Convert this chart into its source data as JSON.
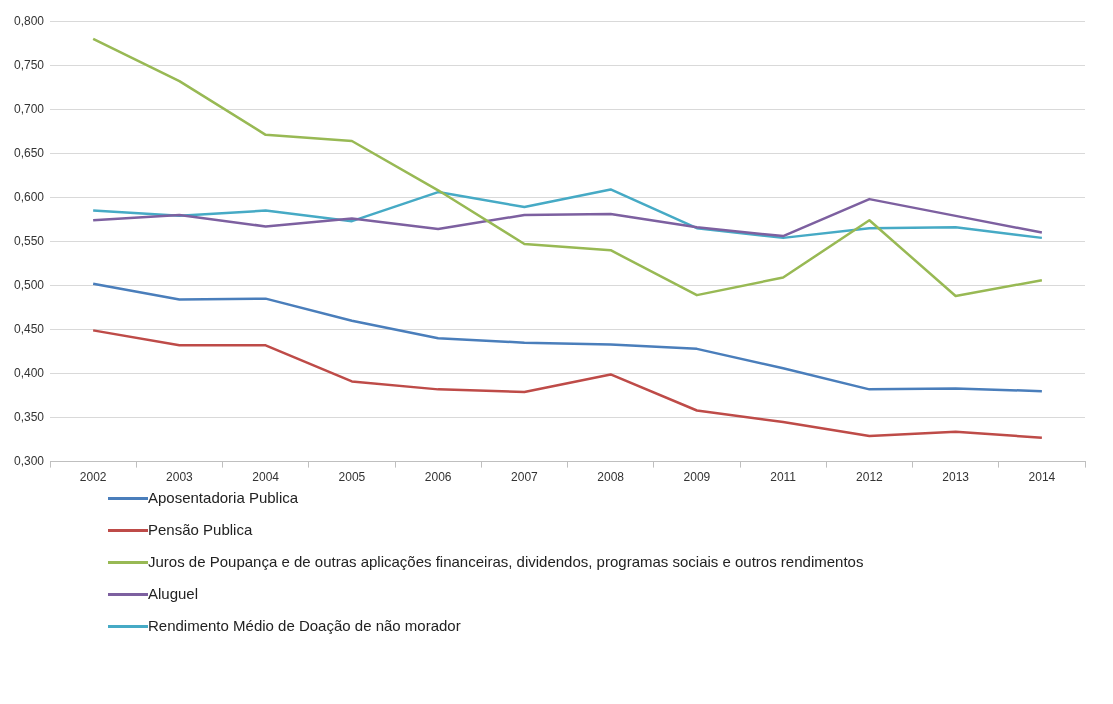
{
  "chart_data": {
    "type": "line",
    "categories": [
      "2002",
      "2003",
      "2004",
      "2005",
      "2006",
      "2007",
      "2008",
      "2009",
      "2011",
      "2012",
      "2013",
      "2014"
    ],
    "series": [
      {
        "name": "Aposentadoria Publica",
        "color": "#4a7ebb",
        "values": [
          0.502,
          0.484,
          0.485,
          0.46,
          0.44,
          0.435,
          0.433,
          0.428,
          0.406,
          0.382,
          0.383,
          0.38
        ]
      },
      {
        "name": "Pensão Publica",
        "color": "#be4b48",
        "values": [
          0.449,
          0.432,
          0.432,
          0.391,
          0.382,
          0.379,
          0.399,
          0.358,
          0.345,
          0.329,
          0.334,
          0.327
        ]
      },
      {
        "name": "Juros  de Poupança e de outras aplicações financeiras, dividendos, programas sociais e outros rendimentos",
        "color": "#98b954",
        "values": [
          0.78,
          0.732,
          0.671,
          0.664,
          0.608,
          0.547,
          0.54,
          0.489,
          0.509,
          0.574,
          0.488,
          0.506
        ]
      },
      {
        "name": "Aluguel",
        "color": "#7d60a0",
        "values": [
          0.574,
          0.58,
          0.567,
          0.576,
          0.564,
          0.58,
          0.581,
          0.566,
          0.556,
          0.598,
          0.579,
          0.56
        ]
      },
      {
        "name": "Rendimento Médio de Doação de não morador",
        "color": "#46aac5",
        "values": [
          0.585,
          0.579,
          0.585,
          0.573,
          0.606,
          0.589,
          0.609,
          0.565,
          0.554,
          0.565,
          0.566,
          0.554
        ]
      }
    ],
    "ylim": [
      0.3,
      0.8
    ],
    "yticks": [
      {
        "value": 0.3,
        "label": "0,300"
      },
      {
        "value": 0.35,
        "label": "0,350"
      },
      {
        "value": 0.4,
        "label": "0,400"
      },
      {
        "value": 0.45,
        "label": "0,450"
      },
      {
        "value": 0.5,
        "label": "0,500"
      },
      {
        "value": 0.55,
        "label": "0,550"
      },
      {
        "value": 0.6,
        "label": "0,600"
      },
      {
        "value": 0.65,
        "label": "0,650"
      },
      {
        "value": 0.7,
        "label": "0,700"
      },
      {
        "value": 0.75,
        "label": "0,750"
      },
      {
        "value": 0.8,
        "label": "0,800"
      }
    ],
    "grid": "y",
    "legend": "bottom",
    "marker": "none",
    "line_style": "solid"
  }
}
